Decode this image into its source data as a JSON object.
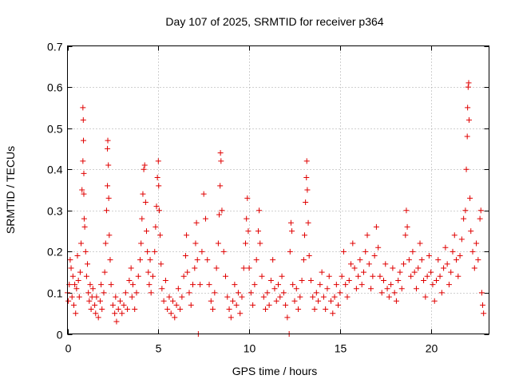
{
  "chart_data": {
    "type": "scatter",
    "title": "Day 107 of 2025, SRMTID for receiver p364",
    "xlabel": "GPS time / hours",
    "ylabel": "SRMTID / TECUs",
    "xlim": [
      0,
      23.2
    ],
    "ylim": [
      0,
      0.7
    ],
    "xticks": [
      0,
      5,
      10,
      15,
      20
    ],
    "xtick_labels": [
      "0",
      "5",
      "10",
      "15",
      "20"
    ],
    "yticks": [
      0,
      0.1,
      0.2,
      0.3,
      0.4,
      0.5,
      0.6,
      0.7
    ],
    "ytick_labels": [
      "0",
      "0.1",
      "0.2",
      "0.3",
      "0.4",
      "0.5",
      "0.6",
      "0.7"
    ],
    "grid": true,
    "marker": "plus",
    "color": "#e00000",
    "series": [
      {
        "name": "SRMTID",
        "points": [
          [
            0.0,
            0.1
          ],
          [
            0.05,
            0.08
          ],
          [
            0.1,
            0.12
          ],
          [
            0.15,
            0.18
          ],
          [
            0.2,
            0.16
          ],
          [
            0.25,
            0.09
          ],
          [
            0.3,
            0.14
          ],
          [
            0.35,
            0.07
          ],
          [
            0.4,
            0.12
          ],
          [
            0.45,
            0.05
          ],
          [
            0.5,
            0.11
          ],
          [
            0.55,
            0.19
          ],
          [
            0.6,
            0.13
          ],
          [
            0.65,
            0.09
          ],
          [
            0.7,
            0.15
          ],
          [
            0.75,
            0.22
          ],
          [
            0.8,
            0.35
          ],
          [
            0.85,
            0.42
          ],
          [
            0.85,
            0.55
          ],
          [
            0.87,
            0.52
          ],
          [
            0.88,
            0.47
          ],
          [
            0.9,
            0.39
          ],
          [
            0.9,
            0.34
          ],
          [
            0.92,
            0.28
          ],
          [
            0.95,
            0.26
          ],
          [
            1.0,
            0.2
          ],
          [
            1.05,
            0.14
          ],
          [
            1.1,
            0.17
          ],
          [
            1.15,
            0.1
          ],
          [
            1.2,
            0.08
          ],
          [
            1.25,
            0.12
          ],
          [
            1.3,
            0.06
          ],
          [
            1.35,
            0.09
          ],
          [
            1.4,
            0.11
          ],
          [
            1.5,
            0.07
          ],
          [
            1.55,
            0.05
          ],
          [
            1.6,
            0.09
          ],
          [
            1.7,
            0.04
          ],
          [
            1.8,
            0.08
          ],
          [
            1.85,
            0.12
          ],
          [
            1.9,
            0.06
          ],
          [
            2.0,
            0.1
          ],
          [
            2.05,
            0.15
          ],
          [
            2.1,
            0.22
          ],
          [
            2.15,
            0.3
          ],
          [
            2.2,
            0.36
          ],
          [
            2.2,
            0.45
          ],
          [
            2.22,
            0.47
          ],
          [
            2.25,
            0.41
          ],
          [
            2.27,
            0.33
          ],
          [
            2.3,
            0.24
          ],
          [
            2.35,
            0.18
          ],
          [
            2.4,
            0.12
          ],
          [
            2.5,
            0.07
          ],
          [
            2.6,
            0.05
          ],
          [
            2.65,
            0.09
          ],
          [
            2.7,
            0.03
          ],
          [
            2.8,
            0.06
          ],
          [
            2.9,
            0.08
          ],
          [
            3.0,
            0.05
          ],
          [
            3.1,
            0.07
          ],
          [
            3.2,
            0.1
          ],
          [
            3.3,
            0.06
          ],
          [
            3.4,
            0.13
          ],
          [
            3.5,
            0.16
          ],
          [
            3.55,
            0.09
          ],
          [
            3.6,
            0.12
          ],
          [
            3.7,
            0.06
          ],
          [
            3.8,
            0.1
          ],
          [
            3.9,
            0.14
          ],
          [
            4.0,
            0.18
          ],
          [
            4.05,
            0.22
          ],
          [
            4.1,
            0.28
          ],
          [
            4.15,
            0.34
          ],
          [
            4.2,
            0.4
          ],
          [
            4.25,
            0.41
          ],
          [
            4.3,
            0.32
          ],
          [
            4.35,
            0.25
          ],
          [
            4.4,
            0.2
          ],
          [
            4.45,
            0.15
          ],
          [
            4.5,
            0.12
          ],
          [
            4.55,
            0.18
          ],
          [
            4.6,
            0.1
          ],
          [
            4.7,
            0.14
          ],
          [
            4.8,
            0.2
          ],
          [
            4.85,
            0.26
          ],
          [
            4.9,
            0.31
          ],
          [
            4.95,
            0.38
          ],
          [
            5.0,
            0.42
          ],
          [
            5.02,
            0.36
          ],
          [
            5.05,
            0.3
          ],
          [
            5.1,
            0.24
          ],
          [
            5.15,
            0.17
          ],
          [
            5.2,
            0.11
          ],
          [
            5.3,
            0.08
          ],
          [
            5.4,
            0.13
          ],
          [
            5.5,
            0.06
          ],
          [
            5.6,
            0.09
          ],
          [
            5.7,
            0.05
          ],
          [
            5.8,
            0.08
          ],
          [
            5.9,
            0.04
          ],
          [
            6.0,
            0.07
          ],
          [
            6.1,
            0.11
          ],
          [
            6.2,
            0.06
          ],
          [
            6.3,
            0.09
          ],
          [
            6.4,
            0.14
          ],
          [
            6.5,
            0.19
          ],
          [
            6.55,
            0.24
          ],
          [
            6.6,
            0.15
          ],
          [
            6.7,
            0.1
          ],
          [
            6.8,
            0.07
          ],
          [
            6.9,
            0.12
          ],
          [
            7.0,
            0.16
          ],
          [
            7.05,
            0.22
          ],
          [
            7.1,
            0.27
          ],
          [
            7.15,
            0.18
          ],
          [
            7.2,
            0.0
          ],
          [
            7.3,
            0.12
          ],
          [
            7.4,
            0.2
          ],
          [
            7.5,
            0.34
          ],
          [
            7.6,
            0.28
          ],
          [
            7.7,
            0.18
          ],
          [
            7.8,
            0.12
          ],
          [
            7.9,
            0.08
          ],
          [
            8.0,
            0.06
          ],
          [
            8.1,
            0.1
          ],
          [
            8.2,
            0.16
          ],
          [
            8.3,
            0.22
          ],
          [
            8.35,
            0.29
          ],
          [
            8.4,
            0.36
          ],
          [
            8.42,
            0.44
          ],
          [
            8.45,
            0.42
          ],
          [
            8.5,
            0.3
          ],
          [
            8.6,
            0.2
          ],
          [
            8.7,
            0.14
          ],
          [
            8.8,
            0.09
          ],
          [
            8.9,
            0.06
          ],
          [
            9.0,
            0.04
          ],
          [
            9.1,
            0.08
          ],
          [
            9.2,
            0.12
          ],
          [
            9.3,
            0.07
          ],
          [
            9.4,
            0.1
          ],
          [
            9.5,
            0.05
          ],
          [
            9.6,
            0.09
          ],
          [
            9.7,
            0.16
          ],
          [
            9.8,
            0.22
          ],
          [
            9.85,
            0.28
          ],
          [
            9.9,
            0.33
          ],
          [
            9.95,
            0.25
          ],
          [
            10.0,
            0.16
          ],
          [
            10.1,
            0.1
          ],
          [
            10.2,
            0.07
          ],
          [
            10.3,
            0.12
          ],
          [
            10.4,
            0.18
          ],
          [
            10.5,
            0.25
          ],
          [
            10.55,
            0.3
          ],
          [
            10.6,
            0.22
          ],
          [
            10.7,
            0.14
          ],
          [
            10.8,
            0.09
          ],
          [
            10.9,
            0.06
          ],
          [
            11.0,
            0.1
          ],
          [
            11.1,
            0.07
          ],
          [
            11.2,
            0.13
          ],
          [
            11.3,
            0.18
          ],
          [
            11.4,
            0.11
          ],
          [
            11.5,
            0.08
          ],
          [
            11.6,
            0.12
          ],
          [
            11.7,
            0.09
          ],
          [
            11.8,
            0.14
          ],
          [
            11.9,
            0.1
          ],
          [
            12.0,
            0.07
          ],
          [
            12.1,
            0.04
          ],
          [
            12.2,
            0.0
          ],
          [
            12.25,
            0.2
          ],
          [
            12.3,
            0.27
          ],
          [
            12.35,
            0.25
          ],
          [
            12.4,
            0.12
          ],
          [
            12.5,
            0.08
          ],
          [
            12.6,
            0.11
          ],
          [
            12.7,
            0.06
          ],
          [
            12.8,
            0.09
          ],
          [
            12.9,
            0.13
          ],
          [
            13.0,
            0.18
          ],
          [
            13.05,
            0.24
          ],
          [
            13.1,
            0.32
          ],
          [
            13.15,
            0.38
          ],
          [
            13.17,
            0.42
          ],
          [
            13.2,
            0.35
          ],
          [
            13.25,
            0.27
          ],
          [
            13.3,
            0.19
          ],
          [
            13.4,
            0.13
          ],
          [
            13.5,
            0.09
          ],
          [
            13.6,
            0.06
          ],
          [
            13.7,
            0.1
          ],
          [
            13.8,
            0.08
          ],
          [
            13.9,
            0.12
          ],
          [
            14.0,
            0.15
          ],
          [
            14.1,
            0.09
          ],
          [
            14.2,
            0.06
          ],
          [
            14.3,
            0.11
          ],
          [
            14.4,
            0.14
          ],
          [
            14.5,
            0.08
          ],
          [
            14.6,
            0.05
          ],
          [
            14.7,
            0.09
          ],
          [
            14.8,
            0.12
          ],
          [
            14.9,
            0.07
          ],
          [
            15.0,
            0.1
          ],
          [
            15.1,
            0.14
          ],
          [
            15.2,
            0.2
          ],
          [
            15.3,
            0.12
          ],
          [
            15.4,
            0.09
          ],
          [
            15.5,
            0.13
          ],
          [
            15.6,
            0.17
          ],
          [
            15.7,
            0.22
          ],
          [
            15.8,
            0.16
          ],
          [
            15.9,
            0.11
          ],
          [
            16.0,
            0.14
          ],
          [
            16.1,
            0.18
          ],
          [
            16.2,
            0.12
          ],
          [
            16.3,
            0.15
          ],
          [
            16.4,
            0.2
          ],
          [
            16.5,
            0.24
          ],
          [
            16.6,
            0.17
          ],
          [
            16.7,
            0.11
          ],
          [
            16.8,
            0.14
          ],
          [
            16.9,
            0.19
          ],
          [
            17.0,
            0.26
          ],
          [
            17.1,
            0.21
          ],
          [
            17.2,
            0.14
          ],
          [
            17.3,
            0.1
          ],
          [
            17.4,
            0.13
          ],
          [
            17.5,
            0.17
          ],
          [
            17.6,
            0.11
          ],
          [
            17.7,
            0.09
          ],
          [
            17.8,
            0.12
          ],
          [
            17.9,
            0.16
          ],
          [
            18.0,
            0.1
          ],
          [
            18.1,
            0.08
          ],
          [
            18.2,
            0.13
          ],
          [
            18.3,
            0.15
          ],
          [
            18.4,
            0.11
          ],
          [
            18.5,
            0.17
          ],
          [
            18.6,
            0.24
          ],
          [
            18.65,
            0.3
          ],
          [
            18.7,
            0.26
          ],
          [
            18.8,
            0.18
          ],
          [
            18.9,
            0.14
          ],
          [
            19.0,
            0.2
          ],
          [
            19.1,
            0.15
          ],
          [
            19.2,
            0.11
          ],
          [
            19.3,
            0.16
          ],
          [
            19.4,
            0.22
          ],
          [
            19.5,
            0.18
          ],
          [
            19.6,
            0.13
          ],
          [
            19.7,
            0.09
          ],
          [
            19.8,
            0.14
          ],
          [
            19.9,
            0.19
          ],
          [
            20.0,
            0.15
          ],
          [
            20.1,
            0.12
          ],
          [
            20.2,
            0.08
          ],
          [
            20.3,
            0.13
          ],
          [
            20.4,
            0.18
          ],
          [
            20.5,
            0.14
          ],
          [
            20.6,
            0.1
          ],
          [
            20.7,
            0.16
          ],
          [
            20.8,
            0.21
          ],
          [
            20.9,
            0.17
          ],
          [
            21.0,
            0.12
          ],
          [
            21.1,
            0.15
          ],
          [
            21.2,
            0.2
          ],
          [
            21.3,
            0.24
          ],
          [
            21.4,
            0.18
          ],
          [
            21.5,
            0.14
          ],
          [
            21.6,
            0.19
          ],
          [
            21.7,
            0.23
          ],
          [
            21.8,
            0.28
          ],
          [
            21.9,
            0.3
          ],
          [
            21.95,
            0.4
          ],
          [
            22.0,
            0.48
          ],
          [
            22.02,
            0.55
          ],
          [
            22.05,
            0.6
          ],
          [
            22.08,
            0.61
          ],
          [
            22.1,
            0.52
          ],
          [
            22.15,
            0.33
          ],
          [
            22.2,
            0.25
          ],
          [
            22.3,
            0.2
          ],
          [
            22.4,
            0.16
          ],
          [
            22.5,
            0.22
          ],
          [
            22.6,
            0.18
          ],
          [
            22.7,
            0.28
          ],
          [
            22.75,
            0.3
          ],
          [
            22.8,
            0.1
          ],
          [
            22.85,
            0.07
          ],
          [
            22.9,
            0.05
          ]
        ]
      }
    ]
  }
}
